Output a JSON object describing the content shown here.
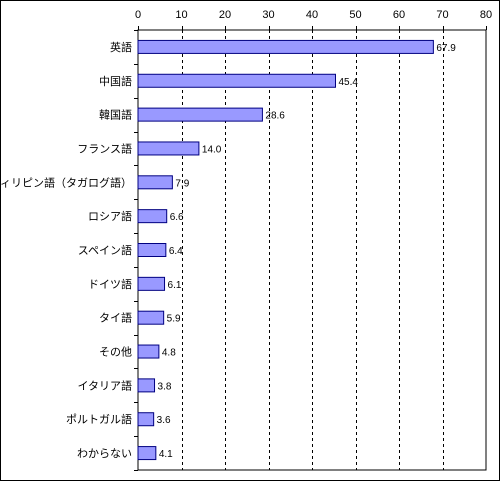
{
  "chart_data": {
    "type": "bar",
    "orientation": "horizontal",
    "categories": [
      "英語",
      "中国語",
      "韓国語",
      "フランス語",
      "フィリピン語（タガログ語）",
      "ロシア語",
      "スペイン語",
      "ドイツ語",
      "タイ語",
      "その他",
      "イタリア語",
      "ポルトガル語",
      "わからない"
    ],
    "values": [
      67.9,
      45.4,
      28.6,
      14.0,
      7.9,
      6.6,
      6.4,
      6.1,
      5.9,
      4.8,
      3.8,
      3.6,
      4.1
    ],
    "value_labels": [
      "67.9",
      "45.4",
      "28.6",
      "14.0",
      "7.9",
      "6.6",
      "6.4",
      "6.1",
      "5.9",
      "4.8",
      "3.8",
      "3.6",
      "4.1"
    ],
    "xlim": [
      0,
      80
    ],
    "xticks": [
      "0",
      "10",
      "20",
      "30",
      "40",
      "50",
      "60",
      "70",
      "80"
    ],
    "tick_axis_position": "top",
    "grid": "vertical dashed",
    "legend": "none",
    "bar_color": "#9999ff",
    "bar_edge_color": "#000080"
  }
}
